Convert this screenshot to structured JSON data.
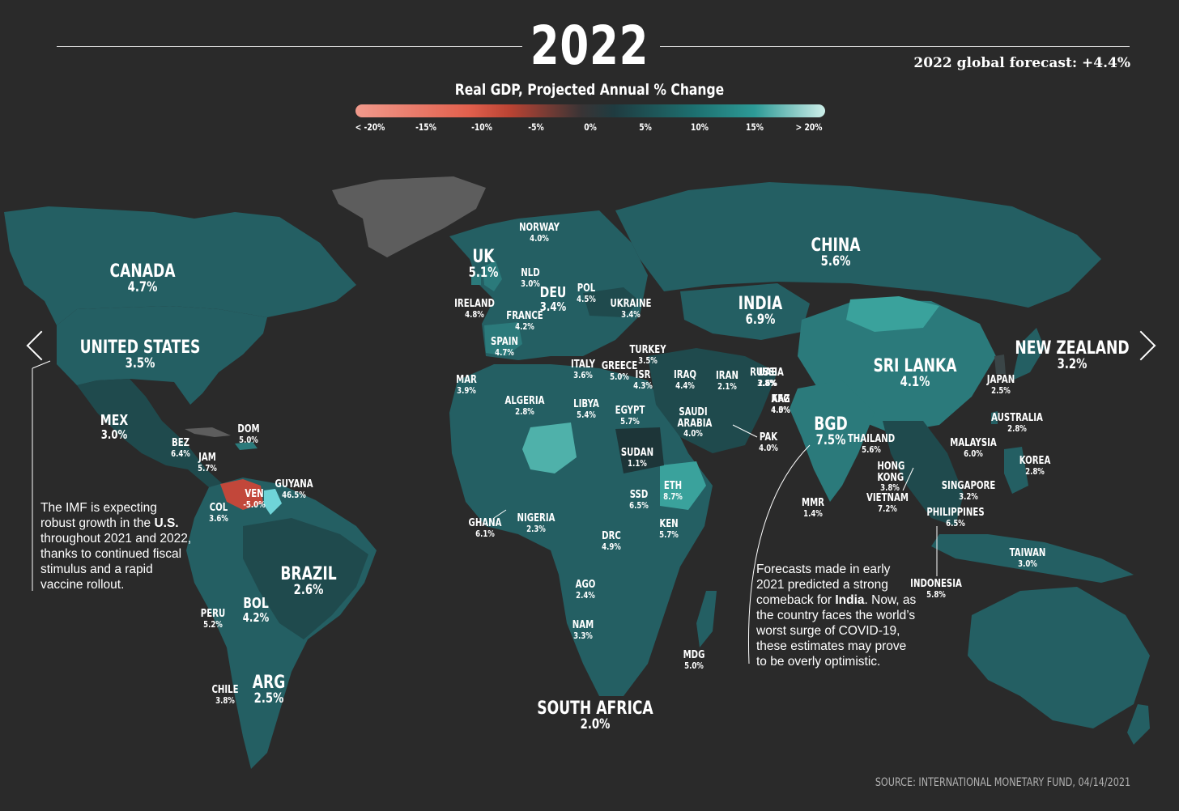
{
  "header": {
    "year": "2022",
    "global_forecast": "2022 global forecast: +4.4%",
    "scale_title": "Real GDP, Projected Annual % Change"
  },
  "legend": {
    "ticks": [
      "< -20%",
      "-15%",
      "-10%",
      "-5%",
      "0%",
      "5%",
      "10%",
      "15%",
      "> 20%"
    ],
    "colors": {
      "low": "#f19a8c",
      "mid_neg": "#e2604d",
      "zero": "#2f3a3c",
      "mid_pos": "#1d6f6f",
      "high": "#cdeee9"
    }
  },
  "colors": {
    "background": "#2a2a2a",
    "land_base": "#245f63",
    "land_dark": "#1f4144",
    "land_mid": "#2b7a7b",
    "land_light": "#3aa29c",
    "no_data": "#5d5d5d",
    "venezuela": "#c2473a",
    "guyana": "#6fd4d8"
  },
  "countries": [
    {
      "name": "CANADA",
      "value": "4.7%"
    },
    {
      "name": "UNITED STATES",
      "value": "3.5%"
    },
    {
      "name": "MEX",
      "value": "3.0%"
    },
    {
      "name": "BEZ",
      "value": "6.4%"
    },
    {
      "name": "JAM",
      "value": "5.7%"
    },
    {
      "name": "DOM",
      "value": "5.0%"
    },
    {
      "name": "VEN",
      "value": "-5.0%"
    },
    {
      "name": "GUYANA",
      "value": "46.5%"
    },
    {
      "name": "COL",
      "value": "3.6%"
    },
    {
      "name": "BRAZIL",
      "value": "2.6%"
    },
    {
      "name": "PERU",
      "value": "5.2%"
    },
    {
      "name": "BOL",
      "value": "4.2%"
    },
    {
      "name": "CHILE",
      "value": "3.8%"
    },
    {
      "name": "ARG",
      "value": "2.5%"
    },
    {
      "name": "UK",
      "value": "5.1%"
    },
    {
      "name": "NORWAY",
      "value": "4.0%"
    },
    {
      "name": "NLD",
      "value": "3.0%"
    },
    {
      "name": "IRELAND",
      "value": "4.8%"
    },
    {
      "name": "DEU",
      "value": "3.4%"
    },
    {
      "name": "POL",
      "value": "4.5%"
    },
    {
      "name": "FRANCE",
      "value": "4.2%"
    },
    {
      "name": "UKRAINE",
      "value": "3.4%"
    },
    {
      "name": "SPAIN",
      "value": "4.7%"
    },
    {
      "name": "ITALY",
      "value": "3.6%"
    },
    {
      "name": "GREECE",
      "value": "5.0%"
    },
    {
      "name": "ISR",
      "value": "4.3%"
    },
    {
      "name": "TURKEY",
      "value": "3.5%"
    },
    {
      "name": "MAR",
      "value": "3.9%"
    },
    {
      "name": "ALGERIA",
      "value": "2.8%"
    },
    {
      "name": "LIBYA",
      "value": "5.4%"
    },
    {
      "name": "EGYPT",
      "value": "5.7%"
    },
    {
      "name": "SUDAN",
      "value": "1.1%"
    },
    {
      "name": "SSD",
      "value": "6.5%"
    },
    {
      "name": "ETH",
      "value": "8.7%"
    },
    {
      "name": "KEN",
      "value": "5.7%"
    },
    {
      "name": "GHANA",
      "value": "6.1%"
    },
    {
      "name": "NIGERIA",
      "value": "2.3%"
    },
    {
      "name": "DRC",
      "value": "4.9%"
    },
    {
      "name": "AGO",
      "value": "2.4%"
    },
    {
      "name": "NAM",
      "value": "3.3%"
    },
    {
      "name": "SOUTH AFRICA",
      "value": "2.0%"
    },
    {
      "name": "MDG",
      "value": "5.0%"
    },
    {
      "name": "SAUDI ARABIA",
      "value": "4.0%"
    },
    {
      "name": "IRAQ",
      "value": "4.4%"
    },
    {
      "name": "IRAN",
      "value": "2.1%"
    },
    {
      "name": "UAE",
      "value": "2.6%"
    },
    {
      "name": "AFG",
      "value": "4.5%"
    },
    {
      "name": "PAK",
      "value": "4.0%"
    },
    {
      "name": "RUSSIA",
      "value": "3.8%"
    },
    {
      "name": "KAZ",
      "value": "4.0%"
    },
    {
      "name": "CHINA",
      "value": "5.6%"
    },
    {
      "name": "INDIA",
      "value": "6.9%"
    },
    {
      "name": "SRI LANKA",
      "value": "4.1%"
    },
    {
      "name": "BGD",
      "value": "7.5%"
    },
    {
      "name": "MMR",
      "value": "1.4%"
    },
    {
      "name": "THAILAND",
      "value": "5.6%"
    },
    {
      "name": "HONG KONG",
      "value": "3.8%"
    },
    {
      "name": "VIETNAM",
      "value": "7.2%"
    },
    {
      "name": "MALAYSIA",
      "value": "6.0%"
    },
    {
      "name": "SINGAPORE",
      "value": "3.2%"
    },
    {
      "name": "PHILIPPINES",
      "value": "6.5%"
    },
    {
      "name": "INDONESIA",
      "value": "5.8%"
    },
    {
      "name": "KOREA",
      "value": "2.8%"
    },
    {
      "name": "TAIWAN",
      "value": "3.0%"
    },
    {
      "name": "JAPAN",
      "value": "2.5%"
    },
    {
      "name": "AUSTRALIA",
      "value": "2.8%"
    },
    {
      "name": "NEW ZEALAND",
      "value": "3.2%"
    }
  ],
  "notes": {
    "us_note_1": "The IMF is expecting\nrobust growth in the ",
    "us_note_bold": "U.S.",
    "us_note_2": "\nthroughout 2021 and 2022,\nthanks to continued fiscal\nstimulus and a rapid\nvaccine rollout.",
    "india_note_1": "Forecasts made in early\n2021 predicted a strong\ncomeback for ",
    "india_note_bold": "India",
    "india_note_2": ". Now, as\nthe country faces the world’s\nworst surge of COVID-19,\nthese estimates may prove\nto be overly optimistic."
  },
  "source": "SOURCE: INTERNATIONAL MONETARY FUND, 04/14/2021",
  "nav": {
    "prev_icon": "chevron-left-icon",
    "next_icon": "chevron-right-icon"
  }
}
